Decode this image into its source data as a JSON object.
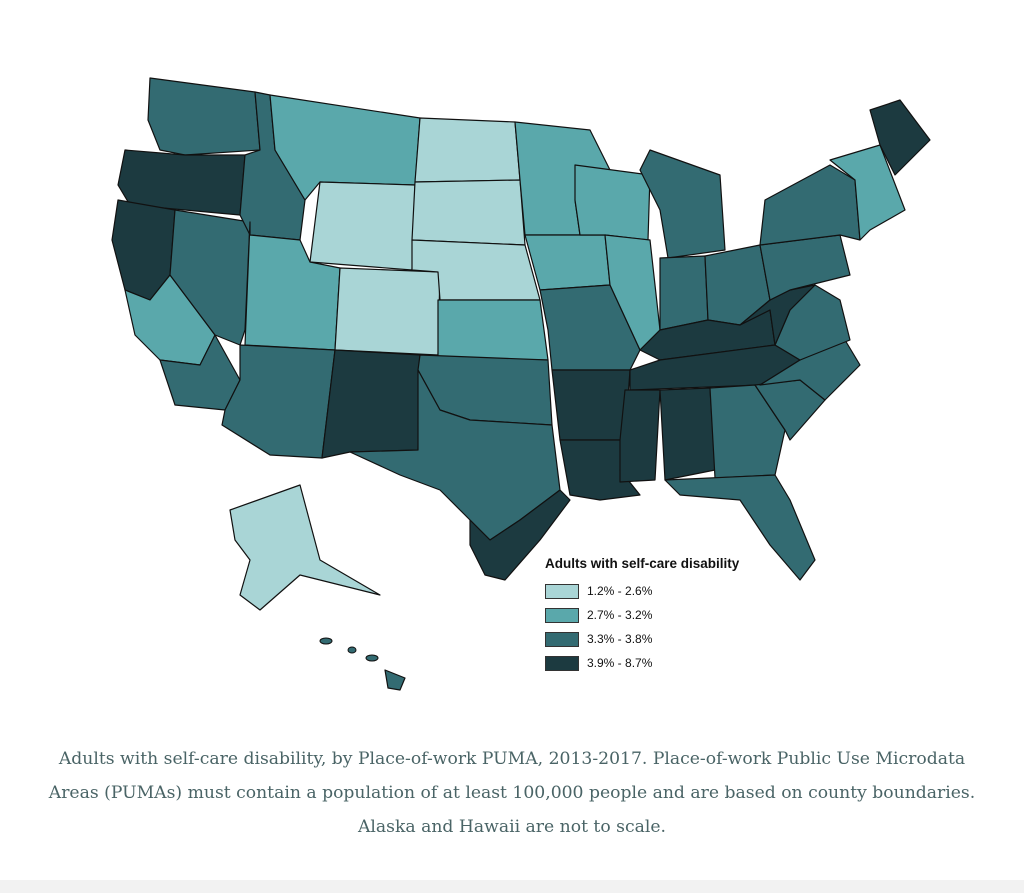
{
  "legend": {
    "title": "Adults with self-care disability",
    "items": [
      {
        "label": "1.2% - 2.6%",
        "color": "#a9d5d6"
      },
      {
        "label": "2.7% - 3.2%",
        "color": "#5aa8ab"
      },
      {
        "label": "3.3% - 3.8%",
        "color": "#336b72"
      },
      {
        "label": "3.9% - 8.7%",
        "color": "#1c3a40"
      }
    ]
  },
  "caption": "Adults with self-care disability, by Place-of-work PUMA, 2013-2017. Place-of-work Public Use Microdata Areas (PUMAs) must contain a population of at least 100,000 people and are based on county boundaries. Alaska and Hawaii are not to scale.",
  "regions": [
    {
      "name": "pacific-northwest",
      "level": 3
    },
    {
      "name": "oregon-coast",
      "level": 4
    },
    {
      "name": "california-north",
      "level": 4
    },
    {
      "name": "california-central",
      "level": 2
    },
    {
      "name": "california-south",
      "level": 3
    },
    {
      "name": "nevada",
      "level": 3
    },
    {
      "name": "idaho",
      "level": 3
    },
    {
      "name": "montana",
      "level": 2
    },
    {
      "name": "wyoming",
      "level": 1
    },
    {
      "name": "utah",
      "level": 2
    },
    {
      "name": "colorado",
      "level": 1
    },
    {
      "name": "arizona",
      "level": 3
    },
    {
      "name": "new-mexico",
      "level": 4
    },
    {
      "name": "north-dakota",
      "level": 1
    },
    {
      "name": "south-dakota",
      "level": 1
    },
    {
      "name": "nebraska",
      "level": 1
    },
    {
      "name": "kansas",
      "level": 2
    },
    {
      "name": "oklahoma",
      "level": 3
    },
    {
      "name": "texas",
      "level": 3
    },
    {
      "name": "texas-gulf",
      "level": 4
    },
    {
      "name": "minnesota",
      "level": 2
    },
    {
      "name": "iowa",
      "level": 2
    },
    {
      "name": "missouri",
      "level": 3
    },
    {
      "name": "arkansas",
      "level": 4
    },
    {
      "name": "louisiana",
      "level": 4
    },
    {
      "name": "wisconsin",
      "level": 2
    },
    {
      "name": "illinois",
      "level": 2
    },
    {
      "name": "michigan",
      "level": 3
    },
    {
      "name": "indiana",
      "level": 3
    },
    {
      "name": "ohio",
      "level": 3
    },
    {
      "name": "kentucky",
      "level": 4
    },
    {
      "name": "tennessee",
      "level": 4
    },
    {
      "name": "mississippi",
      "level": 4
    },
    {
      "name": "alabama",
      "level": 4
    },
    {
      "name": "georgia",
      "level": 3
    },
    {
      "name": "florida",
      "level": 3
    },
    {
      "name": "south-carolina",
      "level": 3
    },
    {
      "name": "north-carolina",
      "level": 3
    },
    {
      "name": "virginia",
      "level": 3
    },
    {
      "name": "west-virginia",
      "level": 4
    },
    {
      "name": "pennsylvania",
      "level": 3
    },
    {
      "name": "new-york",
      "level": 3
    },
    {
      "name": "new-england",
      "level": 2
    },
    {
      "name": "maine",
      "level": 4
    },
    {
      "name": "alaska",
      "level": 1
    },
    {
      "name": "hawaii",
      "level": 3
    }
  ]
}
